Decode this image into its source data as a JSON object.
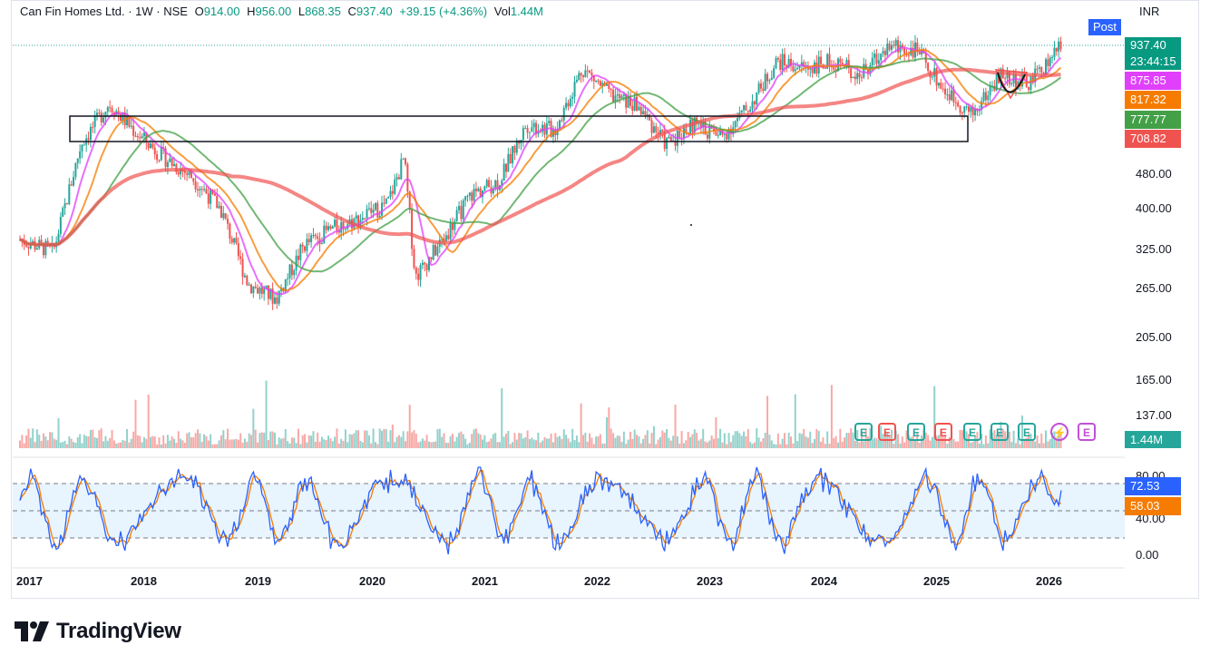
{
  "header": {
    "symbol": "Can Fin Homes Ltd. · 1W · NSE",
    "o_label": "O",
    "o_value": "914.00",
    "h_label": "H",
    "h_value": "956.00",
    "l_label": "L",
    "l_value": "868.35",
    "c_label": "C",
    "c_value": "937.40",
    "change": "+39.15 (+4.36%)",
    "vol_label": "Vol",
    "vol_value": "1.44M"
  },
  "currency": "INR",
  "post_badge": "Post",
  "price_labels": [
    {
      "text": "937.40",
      "color": "#089981"
    },
    {
      "text": "23:44:15",
      "color": "#089981"
    },
    {
      "text": "875.85",
      "color": "#e040fb"
    },
    {
      "text": "817.32",
      "color": "#f57c00"
    },
    {
      "text": "777.77",
      "color": "#43a047"
    },
    {
      "text": "708.82",
      "color": "#ef5350"
    }
  ],
  "volume_label": "1.44M",
  "stoch_labels": [
    {
      "text": "72.53",
      "color": "#2962ff"
    },
    {
      "text": "58.03",
      "color": "#f57c00"
    }
  ],
  "branding": "TradingView",
  "chart_data": {
    "type": "candlestick",
    "interval": "1W",
    "exchange": "NSE",
    "y_scale": "log",
    "y_ticks": [
      "480.00",
      "400.00",
      "325.00",
      "265.00",
      "205.00",
      "165.00",
      "137.00"
    ],
    "x_ticks": [
      "2017",
      "2018",
      "2019",
      "2020",
      "2021",
      "2022",
      "2023",
      "2024",
      "2025",
      "2026"
    ],
    "ohlc_last": {
      "open": 914.0,
      "high": 956.0,
      "low": 868.35,
      "close": 937.4,
      "change": 39.15,
      "change_pct": 4.36
    },
    "volume_last": "1.44M",
    "close_series": {
      "x": [
        2016.7,
        2017.0,
        2017.25,
        2017.5,
        2017.75,
        2018.0,
        2018.25,
        2018.5,
        2018.75,
        2019.0,
        2019.25,
        2019.5,
        2019.75,
        2020.0,
        2020.15,
        2020.25,
        2020.5,
        2020.75,
        2021.0,
        2021.25,
        2021.5,
        2021.75,
        2022.0,
        2022.25,
        2022.5,
        2022.75,
        2023.0,
        2023.25,
        2023.5,
        2023.75,
        2024.0,
        2024.25,
        2024.5,
        2024.75,
        2025.0,
        2025.25,
        2025.5,
        2025.75,
        2026.0,
        2026.05
      ],
      "y": [
        340,
        320,
        560,
        690,
        590,
        520,
        470,
        400,
        270,
        250,
        330,
        360,
        380,
        410,
        520,
        280,
        340,
        430,
        460,
        620,
        600,
        830,
        720,
        680,
        560,
        620,
        580,
        680,
        860,
        830,
        860,
        800,
        930,
        910,
        740,
        650,
        800,
        760,
        900,
        937.4
      ]
    },
    "moving_averages": [
      {
        "value": 875.85,
        "color": "#e040fb"
      },
      {
        "value": 817.32,
        "color": "#f57c00"
      },
      {
        "value": 777.77,
        "color": "#43a047"
      },
      {
        "value": 708.82,
        "color": "#ef5350"
      }
    ],
    "stochastic": {
      "levels": [
        80,
        40
      ],
      "y_ticks": [
        "80.00",
        "40.00",
        "0.00"
      ],
      "k_last": 72.53,
      "d_last": 58.03
    },
    "events": [
      "E",
      "E",
      "E",
      "E",
      "E",
      "E",
      "E",
      "E"
    ]
  }
}
